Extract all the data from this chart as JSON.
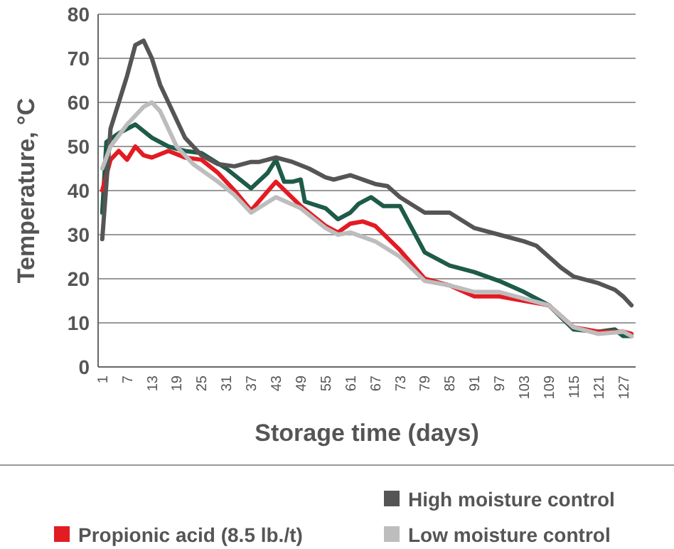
{
  "chart_data": {
    "type": "line",
    "xlabel": "Storage time (days)",
    "ylabel": "Temperature, °C",
    "xlim": [
      0,
      130
    ],
    "xticks": [
      1,
      7,
      13,
      19,
      25,
      31,
      37,
      43,
      49,
      55,
      61,
      67,
      73,
      79,
      85,
      91,
      97,
      103,
      109,
      115,
      121,
      127
    ],
    "ylim": [
      0,
      80
    ],
    "yticks": [
      0,
      10,
      20,
      30,
      40,
      50,
      60,
      70,
      80
    ],
    "grid": "y",
    "legend": "bottom",
    "marker": "none",
    "line_style": "solid",
    "series": [
      {
        "color": "#1e5b48",
        "x": [
          1,
          2,
          5,
          9,
          13,
          17,
          21,
          25,
          31,
          37,
          41,
          43,
          45,
          47,
          49,
          50,
          55,
          58,
          61,
          63,
          66,
          69,
          73,
          79,
          85,
          91,
          97,
          103,
          109,
          115,
          121,
          125,
          127,
          129
        ],
        "values": [
          35,
          51,
          53,
          55,
          52,
          50,
          49,
          48.5,
          45,
          40.5,
          44,
          47,
          42,
          42,
          42.5,
          37.5,
          36,
          33.5,
          35,
          37,
          38.5,
          36.5,
          36.5,
          26,
          23,
          21.5,
          19.5,
          17,
          14,
          8.5,
          8,
          8.5,
          7,
          7
        ]
      },
      {
        "color": "#e31b23",
        "name": "Propionic acid (8.5 lb./t)",
        "x": [
          1,
          3,
          5,
          7,
          9,
          11,
          13,
          17,
          21,
          25,
          29,
          33,
          37,
          43,
          49,
          55,
          58,
          61,
          64,
          67,
          73,
          79,
          85,
          91,
          97,
          103,
          109,
          115,
          121,
          127,
          129
        ],
        "values": [
          40,
          47,
          49,
          47,
          50,
          48,
          47.5,
          49,
          47.5,
          47,
          44,
          40,
          35.5,
          42,
          36.5,
          32,
          30.5,
          32.5,
          33,
          32,
          26.5,
          20,
          18.5,
          16,
          16,
          15,
          14,
          9,
          8,
          8,
          7.5
        ]
      },
      {
        "color": "#555555",
        "name": "High moisture control",
        "x": [
          1,
          3,
          5,
          7,
          9,
          11,
          13,
          15,
          17,
          19,
          21,
          23,
          25,
          29,
          33,
          37,
          39,
          43,
          47,
          51,
          55,
          57,
          61,
          67,
          70,
          73,
          79,
          85,
          91,
          97,
          103,
          106,
          112,
          115,
          121,
          125,
          127,
          129
        ],
        "values": [
          29,
          54,
          60,
          66,
          73,
          74,
          70,
          64,
          60,
          56,
          52,
          50,
          48,
          46,
          45.5,
          46.5,
          46.5,
          47.5,
          46.5,
          45,
          43,
          42.5,
          43.5,
          41.5,
          41,
          38.5,
          35,
          35,
          31.5,
          30,
          28.5,
          27.5,
          22.5,
          20.5,
          19,
          17.5,
          16,
          14
        ]
      },
      {
        "color": "#bdbdbd",
        "name": "Low moisture control",
        "x": [
          1,
          3,
          7,
          11,
          13,
          15,
          19,
          23,
          29,
          33,
          37,
          43,
          49,
          55,
          58,
          61,
          67,
          73,
          79,
          85,
          91,
          97,
          103,
          109,
          115,
          121,
          127,
          129
        ],
        "values": [
          45,
          50,
          55,
          59,
          60,
          58,
          50,
          46,
          42,
          39,
          35,
          38.5,
          36,
          31.5,
          30,
          30.5,
          28.5,
          25,
          19.5,
          18.5,
          17,
          17,
          15.5,
          14,
          9,
          7.5,
          8,
          7
        ]
      }
    ]
  }
}
